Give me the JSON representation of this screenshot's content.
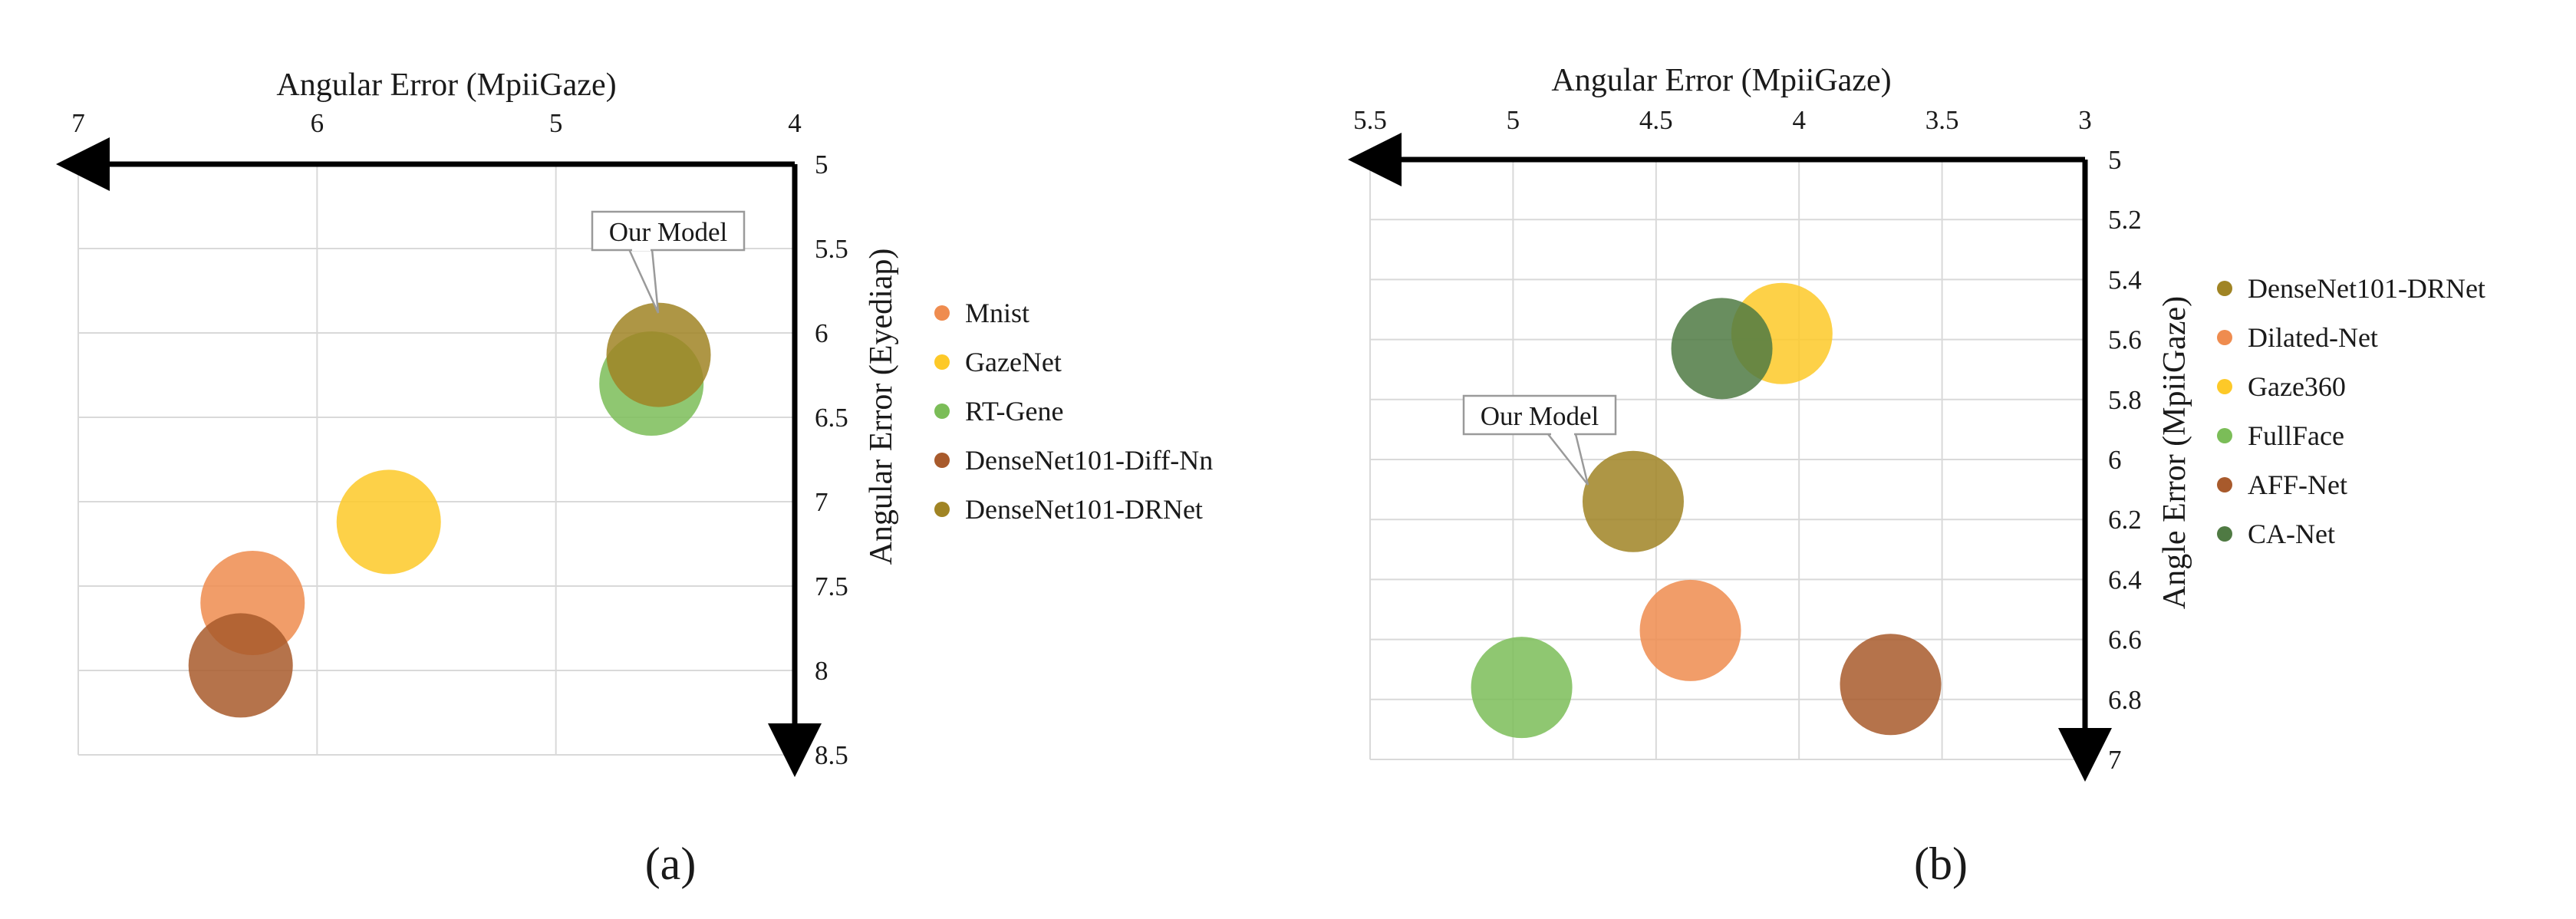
{
  "chart_data": [
    {
      "type": "scatter",
      "subtype": "bubble",
      "panel_label": "(a)",
      "xlabel": "Angular Error (MpiiGaze)",
      "ylabel": "Angular Error (Eyediap)",
      "xlim": [
        7,
        4
      ],
      "ylim": [
        5,
        8.5
      ],
      "x_ticks": [
        "7",
        "6",
        "5",
        "4"
      ],
      "y_ticks": [
        "5",
        "5.5",
        "6",
        "6.5",
        "7",
        "7.5",
        "8",
        "8.5"
      ],
      "x_axis_position": "top",
      "y_axis_position": "right",
      "x_reversed": true,
      "y_reversed": true,
      "grid": true,
      "legend_position": "right",
      "series": [
        {
          "name": "Mnist",
          "color": "#ef8c4f",
          "x": 6.27,
          "y": 7.6
        },
        {
          "name": "GazeNet",
          "color": "#fdc928",
          "x": 5.7,
          "y": 7.12
        },
        {
          "name": "RT-Gene",
          "color": "#7bbd58",
          "x": 4.6,
          "y": 6.3
        },
        {
          "name": "DenseNet101-Diff-Nn",
          "color": "#a85a2c",
          "x": 6.32,
          "y": 7.97
        },
        {
          "name": "DenseNet101-DRNet",
          "color": "#a08424",
          "x": 4.57,
          "y": 6.13
        }
      ],
      "annotation": {
        "text": "Our Model",
        "target": "DenseNet101-DRNet"
      }
    },
    {
      "type": "scatter",
      "subtype": "bubble",
      "panel_label": "(b)",
      "xlabel": "Angular Error (MpiiGaze)",
      "ylabel": "Angle Error (MpiiGaze)",
      "xlim": [
        5.5,
        3
      ],
      "ylim": [
        5,
        7
      ],
      "x_ticks": [
        "5.5",
        "5",
        "4.5",
        "4",
        "3.5",
        "3"
      ],
      "y_ticks": [
        "5",
        "5.2",
        "5.4",
        "5.6",
        "5.8",
        "6",
        "6.2",
        "6.4",
        "6.6",
        "6.8",
        "7"
      ],
      "x_axis_position": "top",
      "y_axis_position": "right",
      "x_reversed": true,
      "y_reversed": true,
      "grid": true,
      "legend_position": "right",
      "series": [
        {
          "name": "DenseNet101-DRNet",
          "color": "#a08424",
          "x": 4.58,
          "y": 6.14
        },
        {
          "name": "Dilated-Net",
          "color": "#ef8c4f",
          "x": 4.38,
          "y": 6.57
        },
        {
          "name": "Gaze360",
          "color": "#fdc928",
          "x": 4.06,
          "y": 5.58
        },
        {
          "name": "FullFace",
          "color": "#7bbd58",
          "x": 4.97,
          "y": 6.76
        },
        {
          "name": "AFF-Net",
          "color": "#a85a2c",
          "x": 3.68,
          "y": 6.75
        },
        {
          "name": "CA-Net",
          "color": "#4f7a43",
          "x": 4.27,
          "y": 5.63
        }
      ],
      "annotation": {
        "text": "Our Model",
        "target": "DenseNet101-DRNet"
      }
    }
  ]
}
